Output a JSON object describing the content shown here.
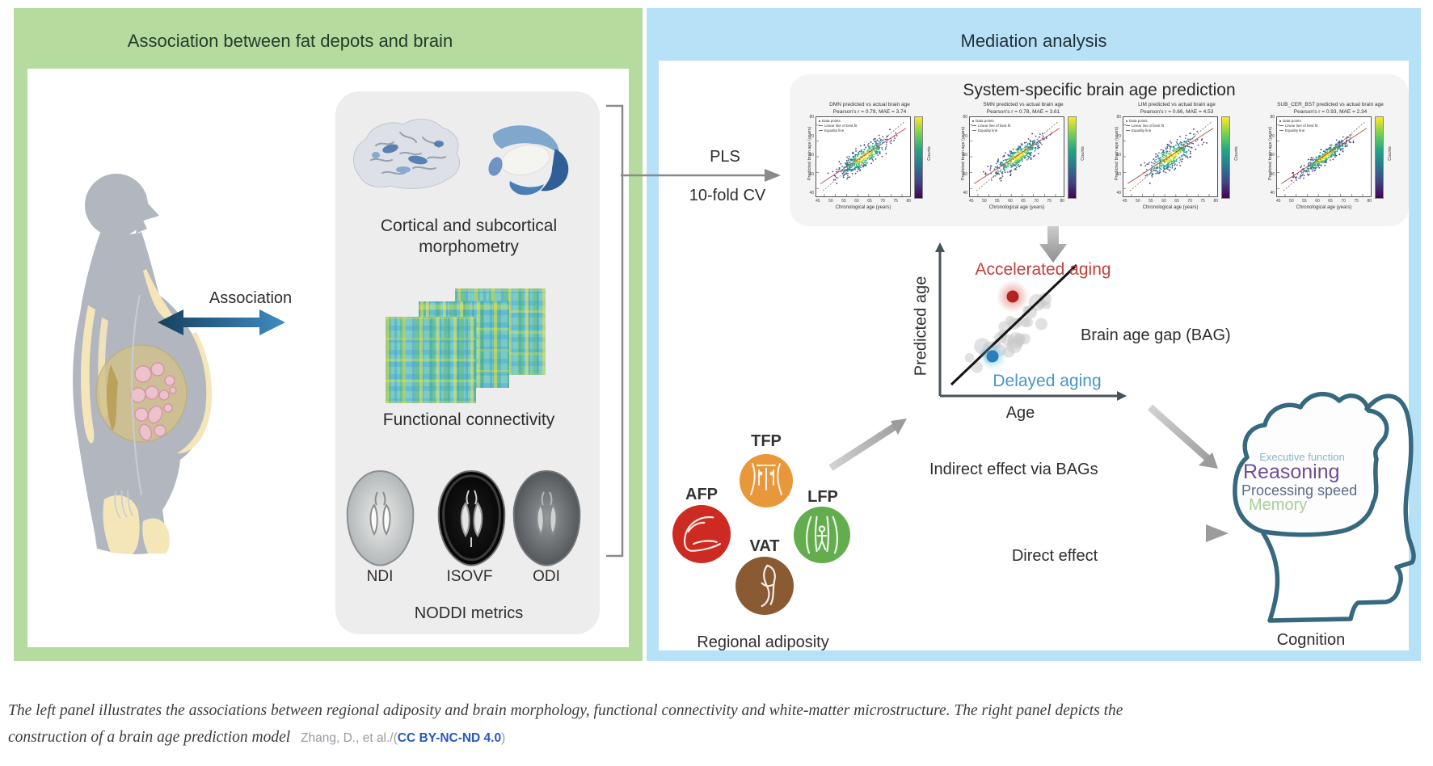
{
  "left_panel": {
    "title": "Association between fat depots and brain",
    "association_label": "Association",
    "morphometry_line1": "Cortical and subcortical",
    "morphometry_line2": "morphometry",
    "connectivity_label": "Functional connectivity",
    "noddi_scans": [
      "NDI",
      "ISOVF",
      "ODI"
    ],
    "noddi_label": "NODDI metrics"
  },
  "right_panel": {
    "title": "Mediation analysis",
    "pls_label": "PLS",
    "cv_label": "10-fold CV",
    "prediction_card": {
      "title": "System-specific brain age prediction",
      "ylabel": "Predicted brain age (years)",
      "xlabel": "Chronological age (years)",
      "colorbar_label": "Counts",
      "legend": [
        "Data points",
        "Linear line of best fit",
        "Equality line"
      ],
      "plots": [
        {
          "title": "DMN predicted vs actual brain age",
          "stats": "Pearson's r = 0.78, MAE = 3.74"
        },
        {
          "title": "SMN predicted vs actual brain age",
          "stats": "Pearson's r = 0.78, MAE = 3.61"
        },
        {
          "title": "LIM predicted vs actual brain age",
          "stats": "Pearson's r = 0.66, MAE = 4.53"
        },
        {
          "title": "SUB_CER_BST predicted vs actual brain age",
          "stats": "Pearson's r = 0.93, MAE = 2.34"
        }
      ]
    },
    "bag_diagram": {
      "accelerated_label": "Accelerated aging",
      "delayed_label": "Delayed aging",
      "ylabel": "Predicted age",
      "xlabel": "Age",
      "bag_label": "Brain age gap (BAG)",
      "accelerated_color": "#c2413c",
      "delayed_color": "#4796c8"
    },
    "adiposity": {
      "depots": [
        {
          "label": "TFP",
          "color": "#e8983b"
        },
        {
          "label": "AFP",
          "color": "#cd2a21"
        },
        {
          "label": "LFP",
          "color": "#64ad4f"
        },
        {
          "label": "VAT",
          "color": "#8a5a33"
        }
      ],
      "label": "Regional adiposity"
    },
    "effects": {
      "indirect_label": "Indirect effect via BAGs",
      "direct_label": "Direct effect"
    },
    "cognition": {
      "domains": [
        {
          "text": "Executive function",
          "color": "#8ab5c4"
        },
        {
          "text": "Reasoning",
          "color": "#6e4f91"
        },
        {
          "text": "Processing speed",
          "color": "#5b6b85"
        },
        {
          "text": "Memory",
          "color": "#a5cf96"
        }
      ],
      "outline_color": "#36697f",
      "label": "Cognition"
    }
  },
  "caption": {
    "line1": "The left panel illustrates the associations between regional adiposity and brain morphology, functional connectivity and white-matter microstructure. The right panel depicts the",
    "line2": "construction of a brain age prediction model",
    "attribution_prefix": "Zhang, D., et al./(",
    "license_link": "CC BY-NC-ND 4.0",
    "attribution_suffix": ")"
  },
  "colors": {
    "left_header": "#b5dc9e",
    "right_header": "#b7e1f6",
    "license_link": "#2457c5",
    "arrow_gray": "#9b9b9b",
    "association_arrow": [
      "#16405f",
      "#3f8cc3"
    ]
  },
  "chart_data": [
    {
      "type": "scatter",
      "system": "DMN",
      "title": "DMN predicted vs actual brain age",
      "subtitle": "Pearson's r = 0.78, MAE = 3.74",
      "pearson_r": 0.78,
      "mae": 3.74,
      "xlabel": "Chronological age (years)",
      "ylabel": "Predicted brain age (years)",
      "colorbar_label": "Counts",
      "legend": [
        "Data points",
        "Linear line of best fit",
        "Equality line"
      ],
      "x_ticks": [
        45,
        50,
        55,
        60,
        65,
        70,
        75,
        80
      ],
      "y_ticks": [
        40,
        50,
        60,
        70,
        80
      ],
      "palette": "viridis"
    },
    {
      "type": "scatter",
      "system": "SMN",
      "title": "SMN predicted vs actual brain age",
      "subtitle": "Pearson's r = 0.78, MAE = 3.61",
      "pearson_r": 0.78,
      "mae": 3.61,
      "xlabel": "Chronological age (years)",
      "ylabel": "Predicted brain age (years)",
      "colorbar_label": "Counts",
      "legend": [
        "Data points",
        "Linear line of best fit",
        "Equality line"
      ],
      "x_ticks": [
        45,
        50,
        55,
        60,
        65,
        70,
        75,
        80
      ],
      "y_ticks": [
        40,
        50,
        60,
        70,
        80
      ],
      "palette": "viridis"
    },
    {
      "type": "scatter",
      "system": "LIM",
      "title": "LIM predicted vs actual brain age",
      "subtitle": "Pearson's r = 0.66, MAE = 4.53",
      "pearson_r": 0.66,
      "mae": 4.53,
      "xlabel": "Chronological age (years)",
      "ylabel": "Predicted brain age (years)",
      "colorbar_label": "Counts",
      "legend": [
        "Data points",
        "Linear line of best fit",
        "Equality line"
      ],
      "x_ticks": [
        45,
        50,
        55,
        60,
        65,
        70,
        75,
        80
      ],
      "y_ticks": [
        40,
        50,
        60,
        70,
        80
      ],
      "palette": "viridis"
    },
    {
      "type": "scatter",
      "system": "SUB_CER_BST",
      "title": "SUB_CER_BST predicted vs actual brain age",
      "subtitle": "Pearson's r = 0.93, MAE = 2.34",
      "pearson_r": 0.93,
      "mae": 2.34,
      "xlabel": "Chronological age (years)",
      "ylabel": "Predicted brain age (years)",
      "colorbar_label": "Counts",
      "legend": [
        "Data points",
        "Linear line of best fit",
        "Equality line"
      ],
      "x_ticks": [
        45,
        50,
        55,
        60,
        65,
        70,
        75,
        80
      ],
      "y_ticks": [
        40,
        50,
        60,
        70,
        80
      ],
      "palette": "viridis"
    }
  ]
}
